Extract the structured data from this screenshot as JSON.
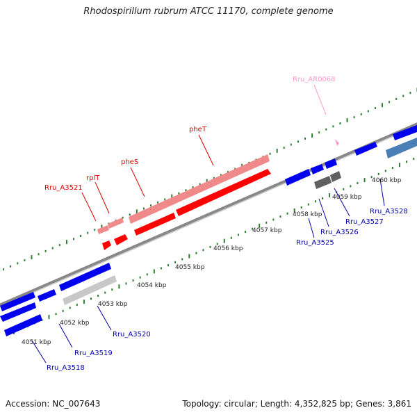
{
  "title": "Rhodospirillum rubrum ATCC 11170, complete genome",
  "footer": {
    "accession": "Accession: NC_007643",
    "stats": "Topology: circular; Length: 4,352,825 bp; Genes: 3,861"
  },
  "colors": {
    "backbone": "#888888",
    "tick": "#2e7d32",
    "forward_red": "#ff0000",
    "forward_pink": "#f08a8a",
    "reverse_blue": "#0000ee",
    "gray_gene": "#c8c8c8",
    "dark_gray_gene": "#606060",
    "steel_blue": "#4a7fb5",
    "rna_pink": "#ff99cc",
    "label_red": "#dd0000",
    "label_blue": "#0000aa",
    "label_pink": "#ff99cc"
  },
  "scale_labels": [
    "4051 kbp",
    "4052 kbp",
    "4053 kbp",
    "4054 kbp",
    "4055 kbp",
    "4056 kbp",
    "4057 kbp",
    "4058 kbp",
    "4059 kbp",
    "4060 kbp"
  ],
  "gene_labels": {
    "pheT": "pheT",
    "pheS": "pheS",
    "rplT": "rplT",
    "Rru_A3521": "Rru_A3521",
    "Rru_AR0068": "Rru_AR0068",
    "Rru_A3518": "Rru_A3518",
    "Rru_A3519": "Rru_A3519",
    "Rru_A3520": "Rru_A3520",
    "Rru_A3525": "Rru_A3525",
    "Rru_A3526": "Rru_A3526",
    "Rru_A3527": "Rru_A3527",
    "Rru_A3528": "Rru_A3528"
  }
}
